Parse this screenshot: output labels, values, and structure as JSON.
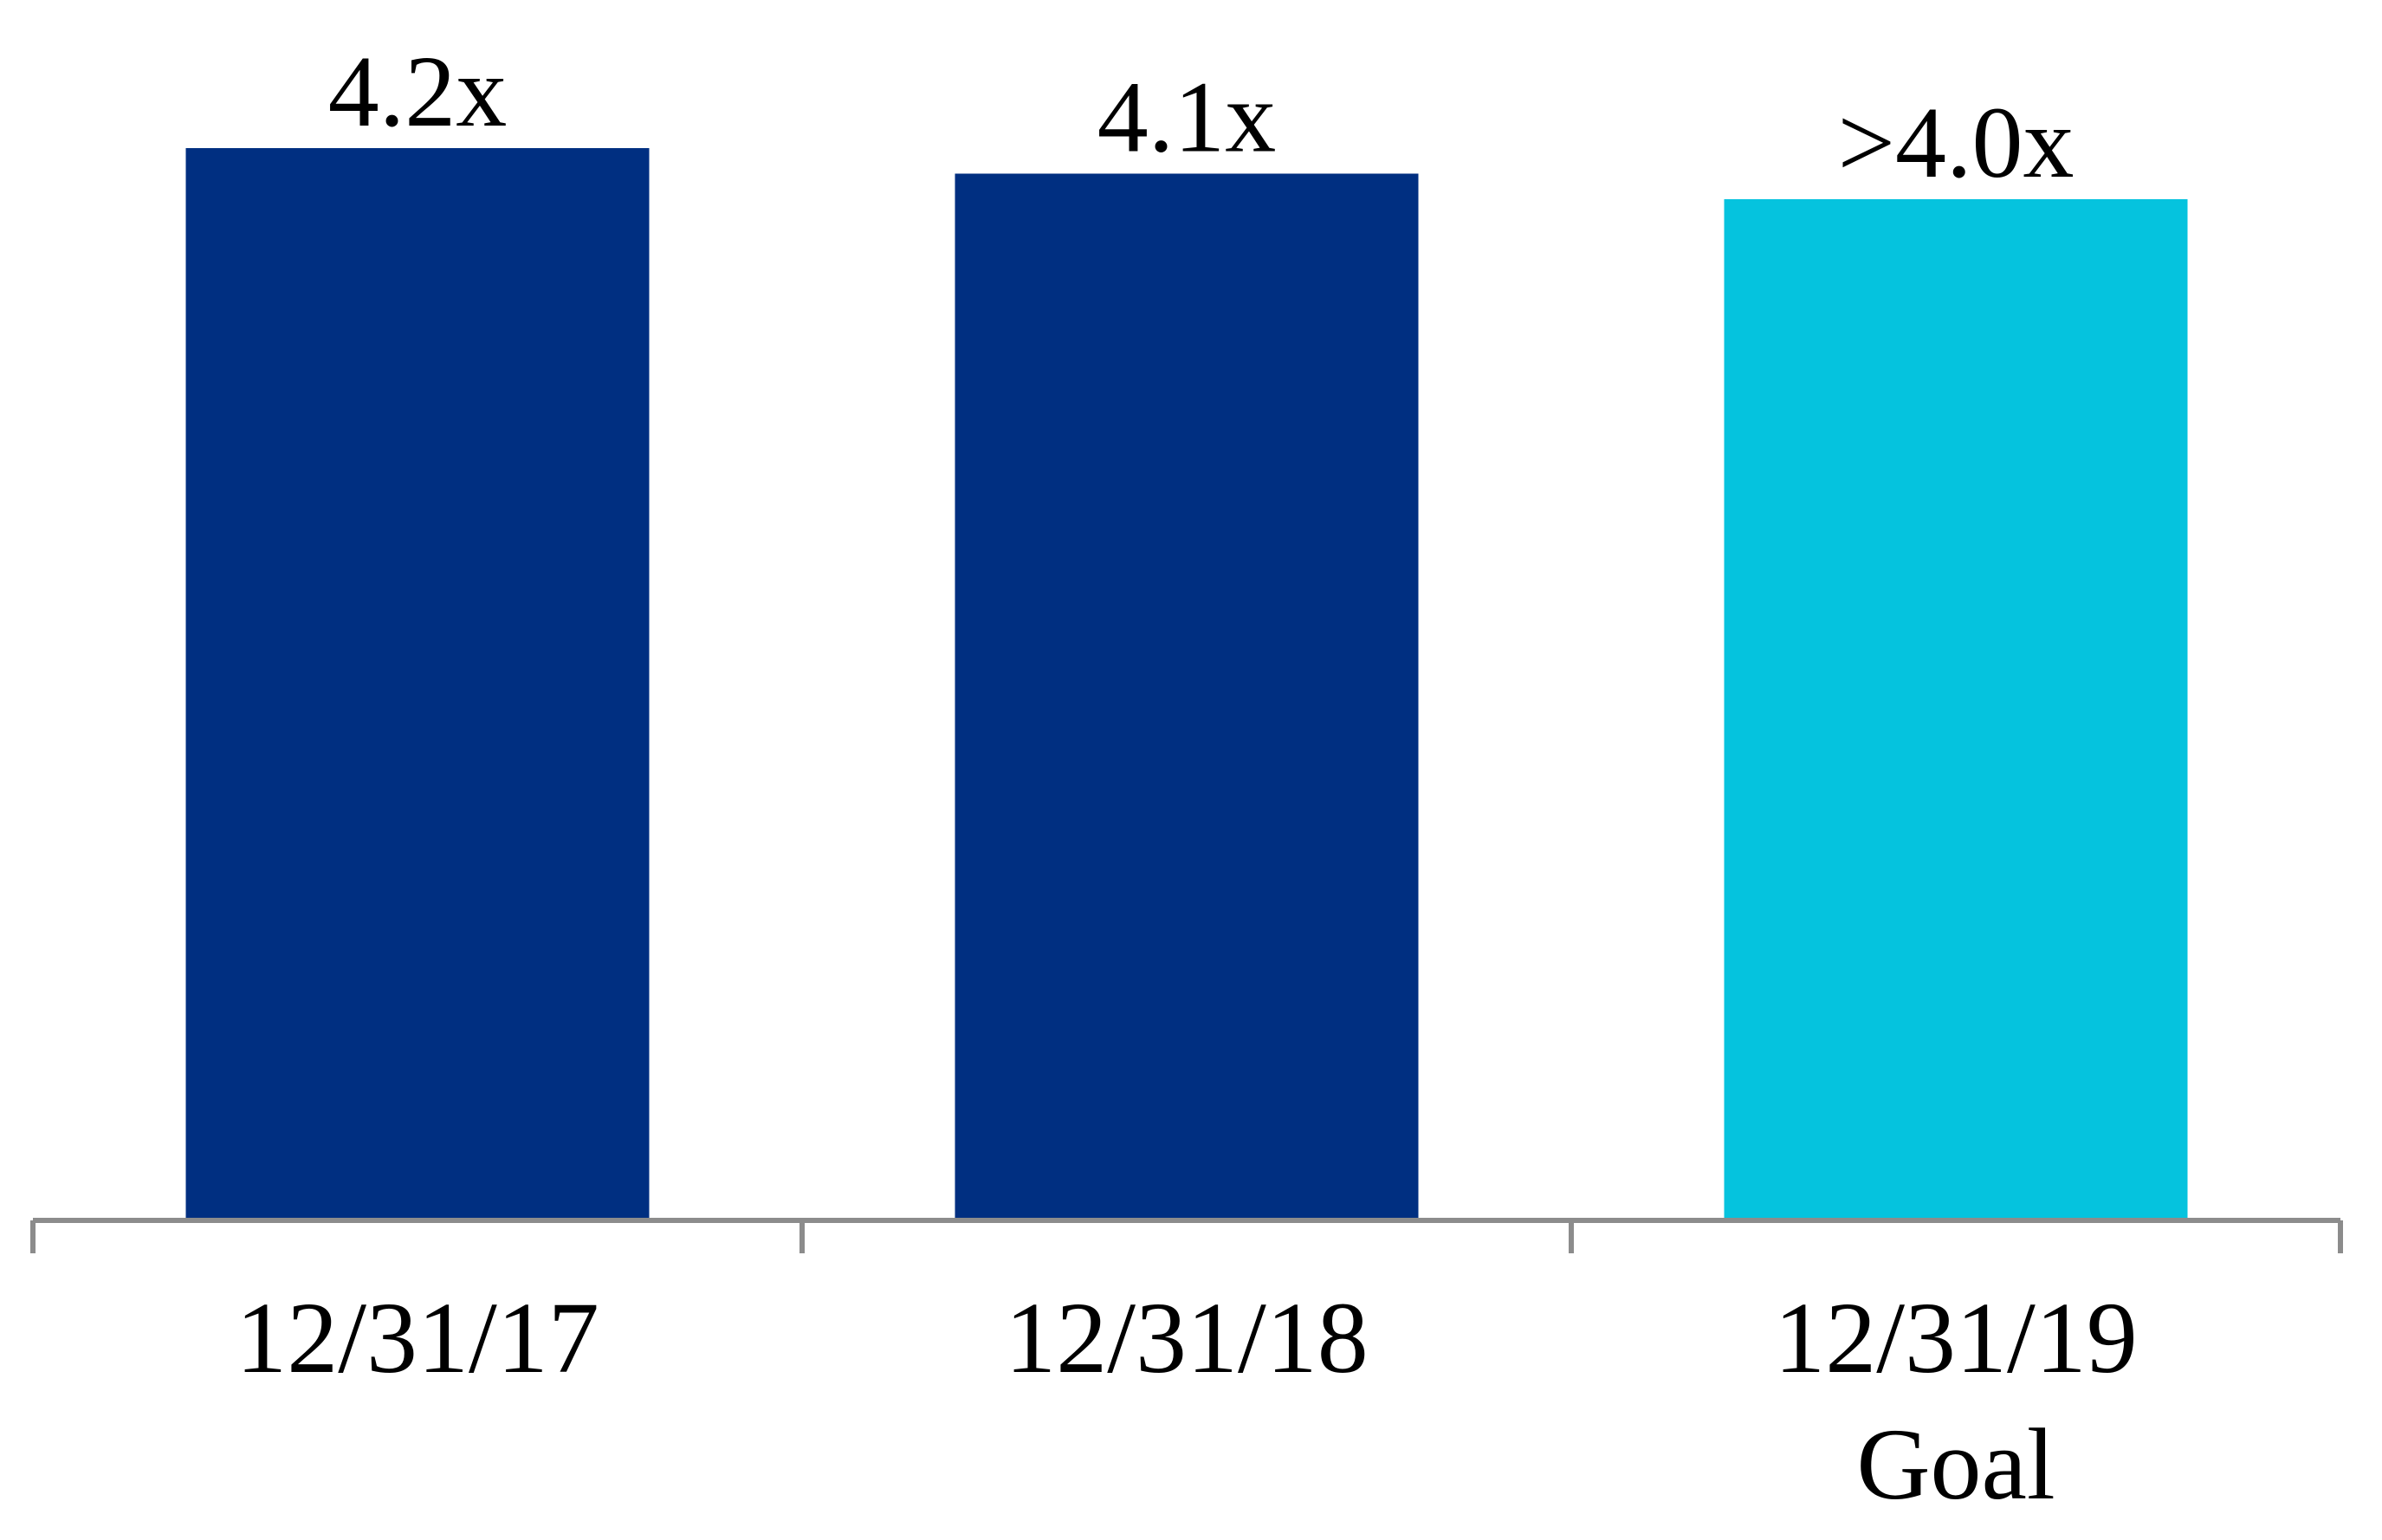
{
  "chart_data": {
    "type": "bar",
    "categories": [
      "12/31/17",
      "12/31/18",
      "12/31/19"
    ],
    "category_sublabels": [
      "",
      "",
      "Goal"
    ],
    "values": [
      4.2,
      4.1,
      4.0
    ],
    "data_labels": [
      "4.2x",
      "4.1x",
      ">4.0x"
    ],
    "colors": [
      "#002F81",
      "#002F81",
      "#05C3DE"
    ],
    "ylim": [
      0,
      4.2
    ],
    "grid": false,
    "legend": "none",
    "axis_color": "#8C8C8C"
  }
}
